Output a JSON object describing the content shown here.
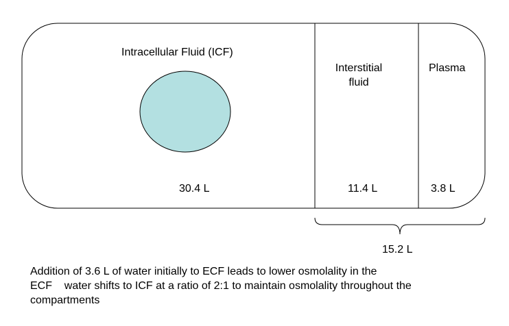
{
  "compartments": {
    "icf": {
      "label": "Intracellular Fluid (ICF)",
      "volume": "30.4 L",
      "cell_fill": "#b3e0e1"
    },
    "interstitial": {
      "label_line1": "Interstitial",
      "label_line2": "fluid",
      "volume": "11.4 L"
    },
    "plasma": {
      "label": "Plasma",
      "volume": "3.8 L"
    }
  },
  "ecf_total": "15.2 L",
  "caption": {
    "line1": "Addition of 3.6 L of water initially to ECF leads to lower osmolality in the",
    "line2": "ECF    water shifts to ICF at a ratio of 2:1 to maintain osmolality throughout the",
    "line3": "compartments"
  },
  "colors": {
    "stroke": "#000000",
    "background": "#ffffff"
  }
}
